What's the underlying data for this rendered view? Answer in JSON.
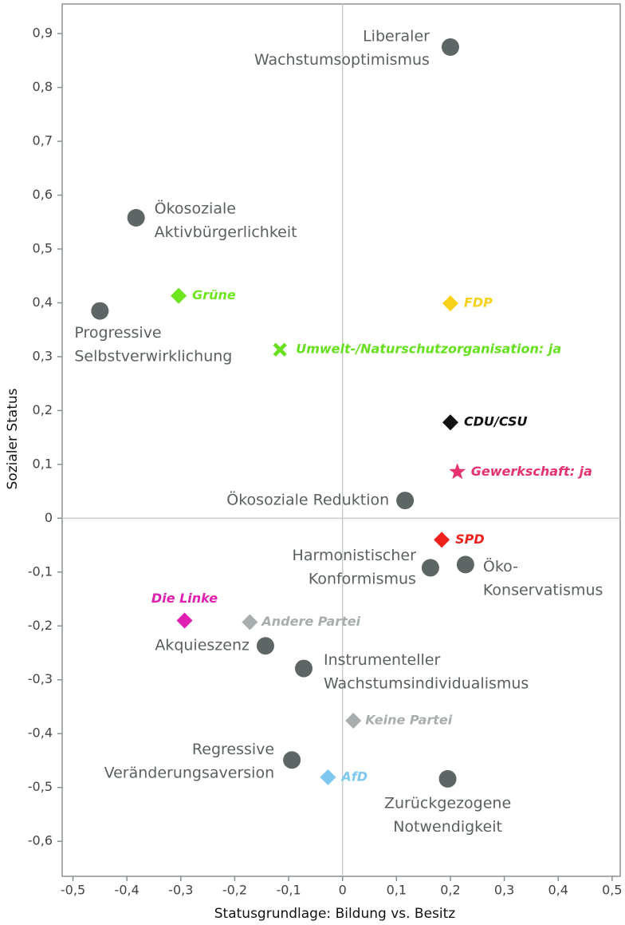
{
  "chart_data": {
    "type": "scatter",
    "x_label": "Statusgrundlage: Bildung vs. Besitz",
    "y_label": "Sozialer Status",
    "xlim": [
      -0.52,
      0.515
    ],
    "ylim": [
      -0.665,
      0.955
    ],
    "xticks": [
      {
        "value": -0.5,
        "label": "-0,5"
      },
      {
        "value": -0.4,
        "label": "-0,4"
      },
      {
        "value": -0.3,
        "label": "-0,3"
      },
      {
        "value": -0.2,
        "label": "-0,2"
      },
      {
        "value": -0.1,
        "label": "-0,1"
      },
      0,
      {
        "value": 0.1,
        "label": "0,1"
      },
      {
        "value": 0.2,
        "label": "0,2"
      },
      {
        "value": 0.3,
        "label": "0,3"
      },
      {
        "value": 0.4,
        "label": "0,4"
      },
      {
        "value": 0.5,
        "label": "0,5"
      }
    ],
    "yticks": [
      {
        "value": 0.9,
        "label": "0,9"
      },
      {
        "value": 0.8,
        "label": "0,8"
      },
      {
        "value": 0.7,
        "label": "0,7"
      },
      {
        "value": 0.6,
        "label": "0,6"
      },
      {
        "value": 0.5,
        "label": "0,5"
      },
      {
        "value": 0.4,
        "label": "0,4"
      },
      {
        "value": 0.3,
        "label": "0,3"
      },
      {
        "value": 0.2,
        "label": "0,2"
      },
      {
        "value": 0.1,
        "label": "0,1"
      },
      0,
      {
        "value": -0.1,
        "label": "-0,1"
      },
      {
        "value": -0.2,
        "label": "-0,2"
      },
      {
        "value": -0.3,
        "label": "-0,3"
      },
      {
        "value": -0.4,
        "label": "-0,4"
      },
      {
        "value": -0.5,
        "label": "-0,5"
      },
      {
        "value": -0.6,
        "label": "-0,6"
      }
    ],
    "zero_lines": true,
    "series": [
      {
        "name": [
          "Liberaler",
          "Wachstumsoptimismus"
        ],
        "marker": "circle",
        "color": "#5e6565",
        "x": [
          0.2
        ],
        "values": [
          0.875
        ]
      },
      {
        "name": [
          "Ökosoziale",
          "Aktivbürgerlichkeit"
        ],
        "marker": "circle",
        "color": "#5e6565",
        "x": [
          -0.383
        ],
        "values": [
          0.558
        ]
      },
      {
        "name": [
          "Progressive",
          "Selbstverwirklichung"
        ],
        "marker": "circle",
        "color": "#5e6565",
        "x": [
          -0.45
        ],
        "values": [
          0.385
        ]
      },
      {
        "name": [
          "Ökosoziale Reduktion"
        ],
        "marker": "circle",
        "color": "#5e6565",
        "x": [
          0.116
        ],
        "values": [
          0.033
        ]
      },
      {
        "name": [
          "Harmonistischer",
          "Konformismus"
        ],
        "marker": "circle",
        "color": "#5e6565",
        "x": [
          0.163
        ],
        "values": [
          -0.092
        ]
      },
      {
        "name": [
          "Öko-",
          "Konservatismus"
        ],
        "marker": "circle",
        "color": "#5e6565",
        "x": [
          0.228
        ],
        "values": [
          -0.086
        ]
      },
      {
        "name": [
          "Akquieszenz"
        ],
        "marker": "circle",
        "color": "#5e6565",
        "x": [
          -0.143
        ],
        "values": [
          -0.237
        ]
      },
      {
        "name": [
          "Instrumenteller",
          "Wachstumsindividualismus"
        ],
        "marker": "circle",
        "color": "#5e6565",
        "x": [
          -0.072
        ],
        "values": [
          -0.279
        ]
      },
      {
        "name": [
          "Regressive",
          "Veränderungsaversion"
        ],
        "marker": "circle",
        "color": "#5e6565",
        "x": [
          -0.094
        ],
        "values": [
          -0.449
        ]
      },
      {
        "name": [
          "Zurückgezogene",
          "Notwendigkeit"
        ],
        "marker": "circle",
        "color": "#5e6565",
        "x": [
          0.195
        ],
        "values": [
          -0.484
        ]
      },
      {
        "name": "Grüne",
        "marker": "diamond",
        "color": "#6ee61e",
        "x": [
          -0.304
        ],
        "values": [
          0.413
        ]
      },
      {
        "name": "FDP",
        "marker": "diamond",
        "color": "#f7d117",
        "x": [
          0.2
        ],
        "values": [
          0.399
        ]
      },
      {
        "name": "Umwelt-/Naturschutzorganisation: ja",
        "marker": "cross",
        "color": "#66e01e",
        "x": [
          -0.116
        ],
        "values": [
          0.313
        ]
      },
      {
        "name": "CDU/CSU",
        "marker": "diamond",
        "color": "#111111",
        "x": [
          0.2
        ],
        "values": [
          0.178
        ]
      },
      {
        "name": "Gewerkschaft: ja",
        "marker": "star",
        "color": "#e5336d",
        "x": [
          0.213
        ],
        "values": [
          0.086
        ]
      },
      {
        "name": "SPD",
        "marker": "diamond",
        "color": "#f0211d",
        "x": [
          0.184
        ],
        "values": [
          -0.04
        ]
      },
      {
        "name": "Die Linke",
        "marker": "diamond",
        "color": "#e020b0",
        "x": [
          -0.293
        ],
        "values": [
          -0.19
        ]
      },
      {
        "name": "Andere Partei",
        "marker": "diamond",
        "color": "#a8aead",
        "x": [
          -0.172
        ],
        "values": [
          -0.193
        ]
      },
      {
        "name": "Keine Partei",
        "marker": "diamond",
        "color": "#a8aead",
        "x": [
          0.02
        ],
        "values": [
          -0.376
        ]
      },
      {
        "name": "AfD",
        "marker": "diamond",
        "color": "#7ec8f0",
        "x": [
          -0.027
        ],
        "values": [
          -0.481
        ]
      }
    ]
  }
}
